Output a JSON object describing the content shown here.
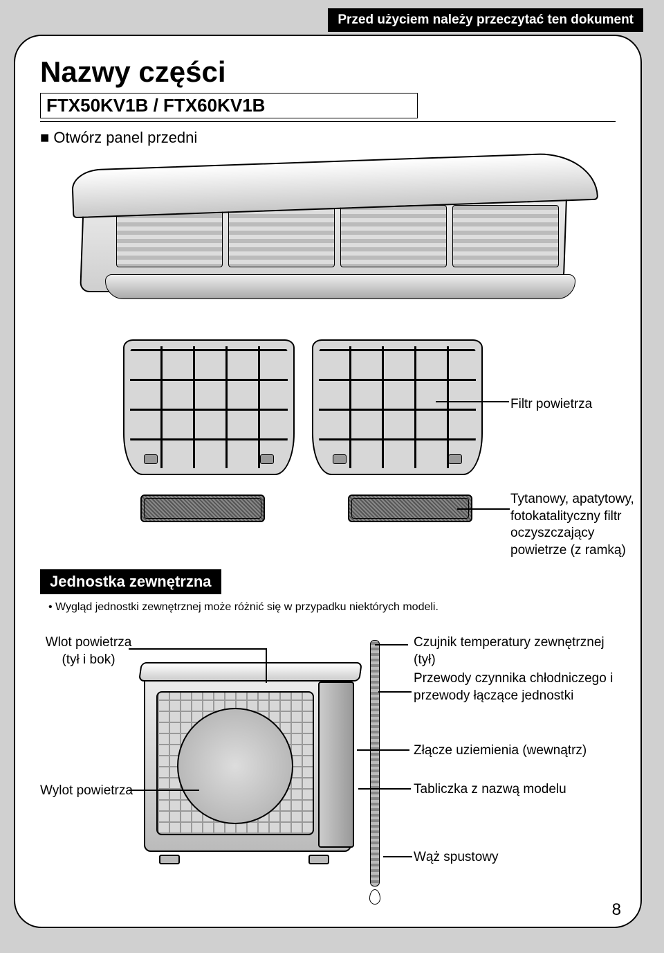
{
  "header": {
    "banner": "Przed użyciem należy przeczytać ten dokument"
  },
  "title": "Nazwy części",
  "model": "FTX50KV1B / FTX60KV1B",
  "instruction": "Otwórz panel przedni",
  "indoor": {
    "filter_label": "Filtr powietrza",
    "deo_label": "Tytanowy, apatytowy, fotokatalityczny filtr oczyszczający powietrze (z ramką)"
  },
  "outdoor": {
    "section_title": "Jednostka zewnętrzna",
    "note": "Wygląd jednostki zewnętrznej może różnić się w przypadku niektórych modeli.",
    "wlot": "Wlot powietrza (tył i bok)",
    "wylot": "Wylot powietrza",
    "r1": "Czujnik temperatury zewnętrznej (tył)",
    "r2": "Przewody czynnika chłodniczego i przewody łączące jednostki",
    "r3": "Złącze uziemienia (wewnątrz)",
    "r4": "Tabliczka z nazwą modelu",
    "r5": "Wąż spustowy"
  },
  "page_number": "8",
  "style": {
    "page_bg": "#d0d0d0",
    "card_bg": "#ffffff",
    "border_color": "#000000",
    "banner_bg": "#000000",
    "banner_fg": "#ffffff",
    "title_fontsize": 42,
    "model_fontsize": 26,
    "body_fontsize": 19,
    "note_fontsize": 16,
    "card_radius": 40
  }
}
